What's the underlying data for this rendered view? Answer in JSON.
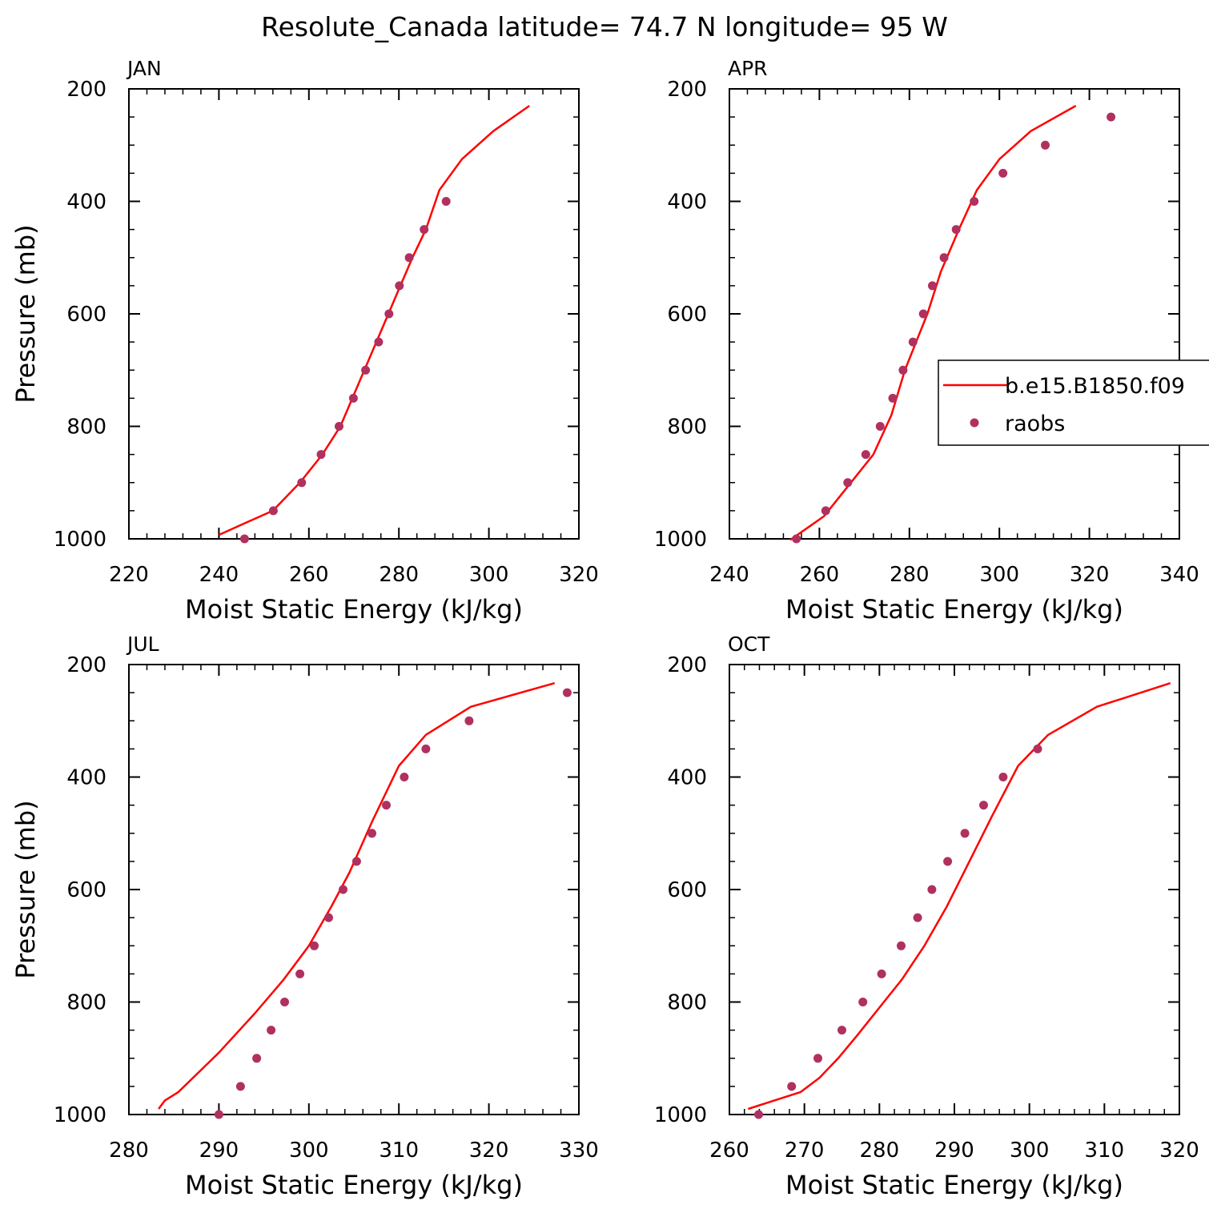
{
  "title": "Resolute_Canada  latitude= 74.7 N longitude= 95 W",
  "legend": {
    "placement": "right of APR panel",
    "entries": [
      {
        "label": "b.e15.B1850.f09",
        "style": "line",
        "color": "#ff0000"
      },
      {
        "label": "raobs",
        "style": "marker",
        "color": "#b03060"
      }
    ]
  },
  "colors": {
    "model_line": "#ff0000",
    "obs_marker": "#b03060"
  },
  "chart_data": [
    {
      "type": "line",
      "panel": "JAN",
      "xlabel": "Moist Static Energy (kJ/kg)",
      "ylabel": "Pressure (mb)",
      "xlim": [
        220,
        320
      ],
      "ylim": [
        1000,
        200
      ],
      "xticks": [
        220,
        240,
        260,
        280,
        300,
        320
      ],
      "yticks": [
        200,
        400,
        600,
        800,
        1000
      ],
      "grid": false,
      "series": [
        {
          "name": "b.e15.B1850.f09",
          "style": "line",
          "x": [
            240,
            245,
            252,
            258,
            263,
            267,
            271,
            275,
            279,
            283,
            286,
            289,
            294,
            301,
            309
          ],
          "y": [
            993,
            975,
            950,
            900,
            850,
            800,
            725,
            650,
            575,
            500,
            450,
            380,
            325,
            275,
            230
          ]
        },
        {
          "name": "raobs",
          "style": "marker",
          "x": [
            245.7,
            252.1,
            258.4,
            262.7,
            266.7,
            269.9,
            272.6,
            275.5,
            277.8,
            280.1,
            282.3,
            285.6,
            290.5
          ],
          "y": [
            1000,
            950,
            900,
            850,
            800,
            750,
            700,
            650,
            600,
            550,
            500,
            450,
            400
          ]
        }
      ]
    },
    {
      "type": "line",
      "panel": "APR",
      "xlabel": "Moist Static Energy (kJ/kg)",
      "ylabel": "",
      "xlim": [
        240,
        340
      ],
      "ylim": [
        1000,
        200
      ],
      "xticks": [
        240,
        260,
        280,
        300,
        320,
        340
      ],
      "yticks": [
        200,
        400,
        600,
        800,
        1000
      ],
      "grid": false,
      "series": [
        {
          "name": "b.e15.B1850.f09",
          "style": "line",
          "x": [
            253.5,
            261,
            267,
            272,
            276,
            279,
            281.5,
            284,
            287,
            291,
            295,
            300,
            307,
            317
          ],
          "y": [
            1002,
            960,
            900,
            850,
            780,
            700,
            650,
            600,
            525,
            450,
            380,
            325,
            275,
            230
          ]
        },
        {
          "name": "raobs",
          "style": "marker",
          "x": [
            254.9,
            261.4,
            266.3,
            270.3,
            273.5,
            276.3,
            278.6,
            280.8,
            283.1,
            285.1,
            287.7,
            290.4,
            294.4,
            300.8,
            310.2,
            324.8
          ],
          "y": [
            1000,
            950,
            900,
            850,
            800,
            750,
            700,
            650,
            600,
            550,
            500,
            450,
            400,
            350,
            300,
            250
          ]
        }
      ]
    },
    {
      "type": "line",
      "panel": "JUL",
      "xlabel": "Moist Static Energy (kJ/kg)",
      "ylabel": "Pressure (mb)",
      "xlim": [
        280,
        330
      ],
      "ylim": [
        1000,
        200
      ],
      "xticks": [
        280,
        290,
        300,
        310,
        320,
        330
      ],
      "yticks": [
        200,
        400,
        600,
        800,
        1000
      ],
      "grid": false,
      "series": [
        {
          "name": "b.e15.B1850.f09",
          "style": "line",
          "x": [
            283.3,
            284,
            285.5,
            290,
            294,
            297.2,
            300,
            302.5,
            304.5,
            307,
            310,
            313,
            318,
            327.3
          ],
          "y": [
            990,
            975,
            960,
            890,
            820,
            760,
            700,
            630,
            570,
            480,
            380,
            325,
            275,
            233
          ]
        },
        {
          "name": "raobs",
          "style": "marker",
          "x": [
            290,
            292.4,
            294.2,
            295.8,
            297.3,
            299,
            300.6,
            302.2,
            303.8,
            305.3,
            307,
            308.6,
            310.6,
            313,
            317.8,
            328.7
          ],
          "y": [
            1000,
            950,
            900,
            850,
            800,
            750,
            700,
            650,
            600,
            550,
            500,
            450,
            400,
            350,
            300,
            250
          ]
        }
      ]
    },
    {
      "type": "line",
      "panel": "OCT",
      "xlabel": "Moist Static Energy (kJ/kg)",
      "ylabel": "",
      "xlim": [
        260,
        320
      ],
      "ylim": [
        1000,
        200
      ],
      "xticks": [
        260,
        270,
        280,
        290,
        300,
        310,
        320
      ],
      "yticks": [
        200,
        400,
        600,
        800,
        1000
      ],
      "grid": false,
      "series": [
        {
          "name": "b.e15.B1850.f09",
          "style": "line",
          "x": [
            262.5,
            266,
            269.5,
            272,
            274.5,
            277,
            280,
            283,
            286,
            289,
            292,
            295,
            298.5,
            302.5,
            309,
            318.8
          ],
          "y": [
            990,
            975,
            960,
            935,
            900,
            860,
            810,
            760,
            700,
            630,
            550,
            470,
            380,
            325,
            275,
            233
          ]
        },
        {
          "name": "raobs",
          "style": "marker",
          "x": [
            263.9,
            268.3,
            271.8,
            275,
            277.8,
            280.3,
            282.9,
            285.1,
            287,
            289.1,
            291.4,
            293.9,
            296.5,
            301.1
          ],
          "y": [
            1000,
            950,
            900,
            850,
            800,
            750,
            700,
            650,
            600,
            550,
            500,
            450,
            400,
            350
          ]
        }
      ]
    }
  ]
}
